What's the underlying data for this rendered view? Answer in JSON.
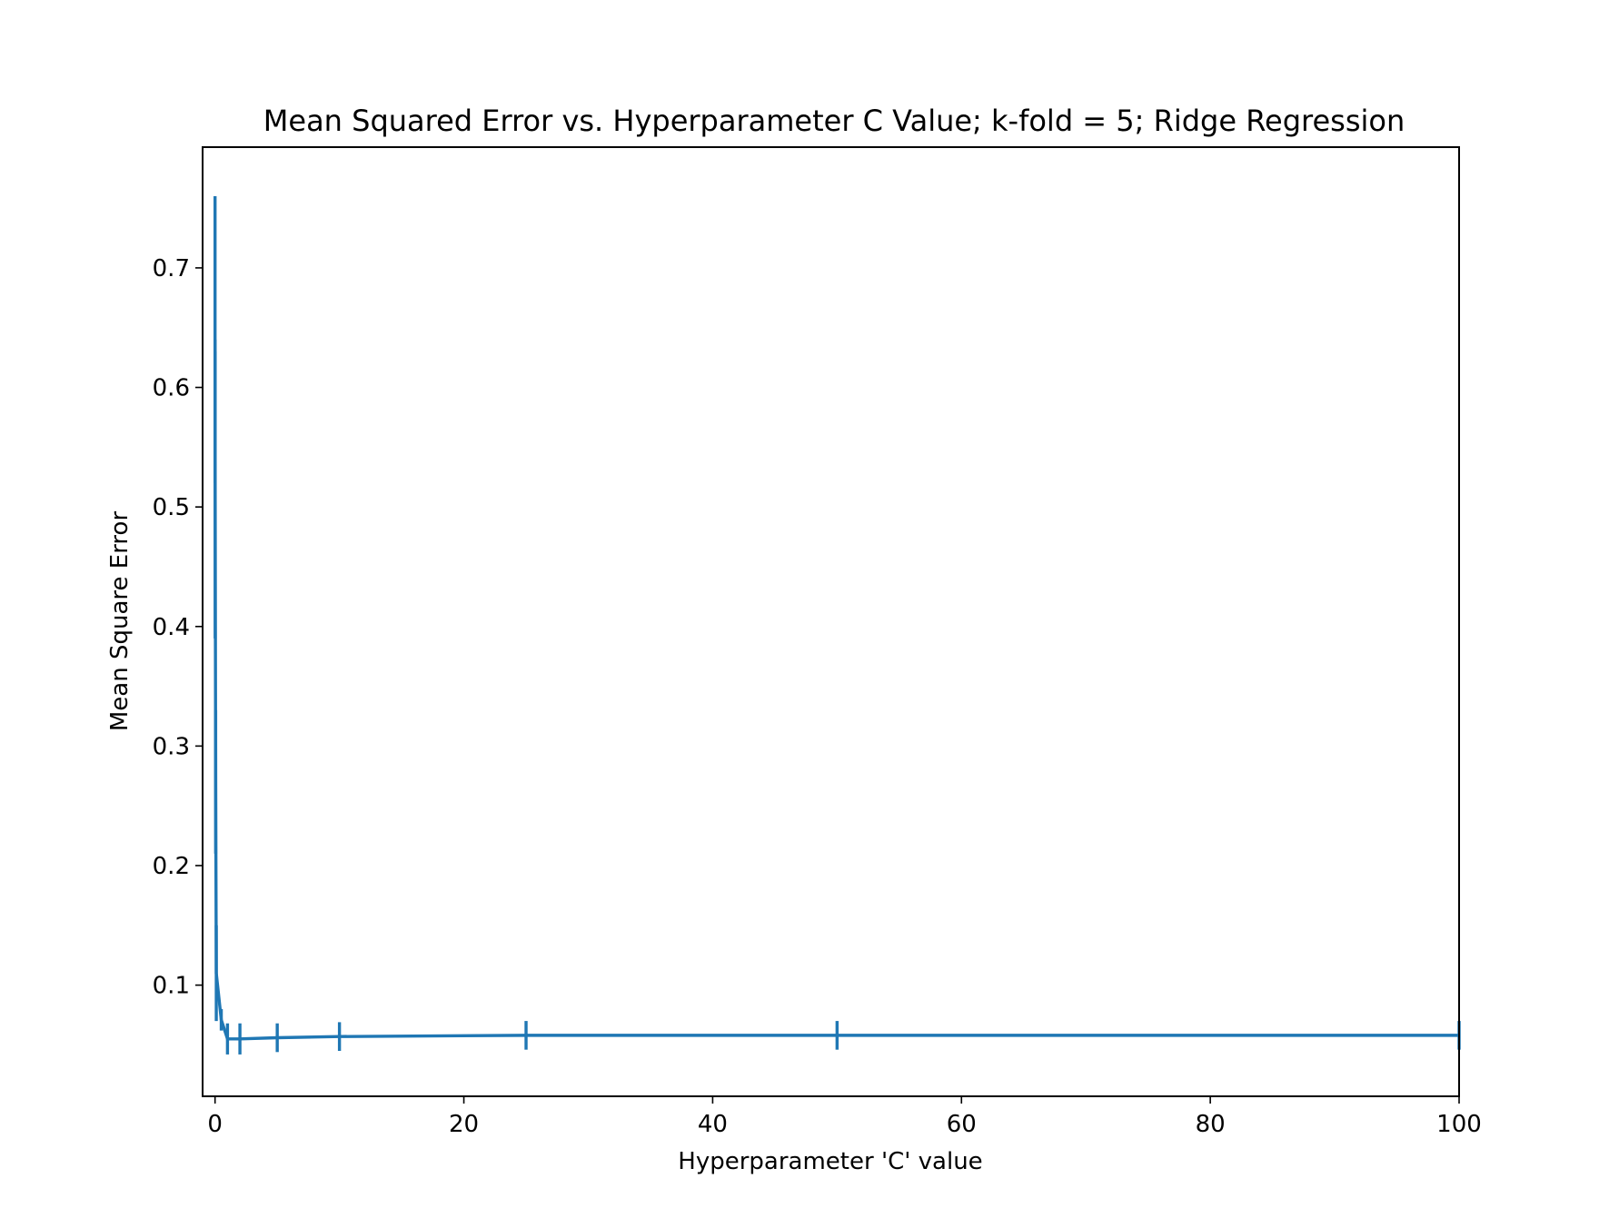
{
  "chart_data": {
    "type": "line",
    "title": "Mean Squared Error vs. Hyperparameter C Value; k-fold = 5; Ridge Regression",
    "xlabel": "Hyperparameter 'C' value",
    "ylabel": "Mean Square Error",
    "xlim": [
      -1,
      100
    ],
    "ylim": [
      0.007,
      0.801
    ],
    "x_ticks": [
      0,
      20,
      40,
      60,
      80,
      100
    ],
    "x_tick_labels": [
      "0",
      "20",
      "40",
      "60",
      "80",
      "100"
    ],
    "y_ticks": [
      0.1,
      0.2,
      0.3,
      0.4,
      0.5,
      0.6,
      0.7
    ],
    "y_tick_labels": [
      "0.1",
      "0.2",
      "0.3",
      "0.4",
      "0.5",
      "0.6",
      "0.7"
    ],
    "grid": false,
    "legend": false,
    "color": "#1f77b4",
    "series": [
      {
        "x": [
          0.001,
          0.01,
          0.05,
          0.1,
          0.5,
          1,
          2,
          5,
          10,
          25,
          50,
          100
        ],
        "y": [
          0.64,
          0.51,
          0.27,
          0.11,
          0.071,
          0.055,
          0.055,
          0.056,
          0.057,
          0.058,
          0.058,
          0.058
        ],
        "yerr": [
          0.12,
          0.12,
          0.06,
          0.04,
          0.009,
          0.013,
          0.013,
          0.012,
          0.012,
          0.012,
          0.012,
          0.012
        ]
      }
    ]
  }
}
